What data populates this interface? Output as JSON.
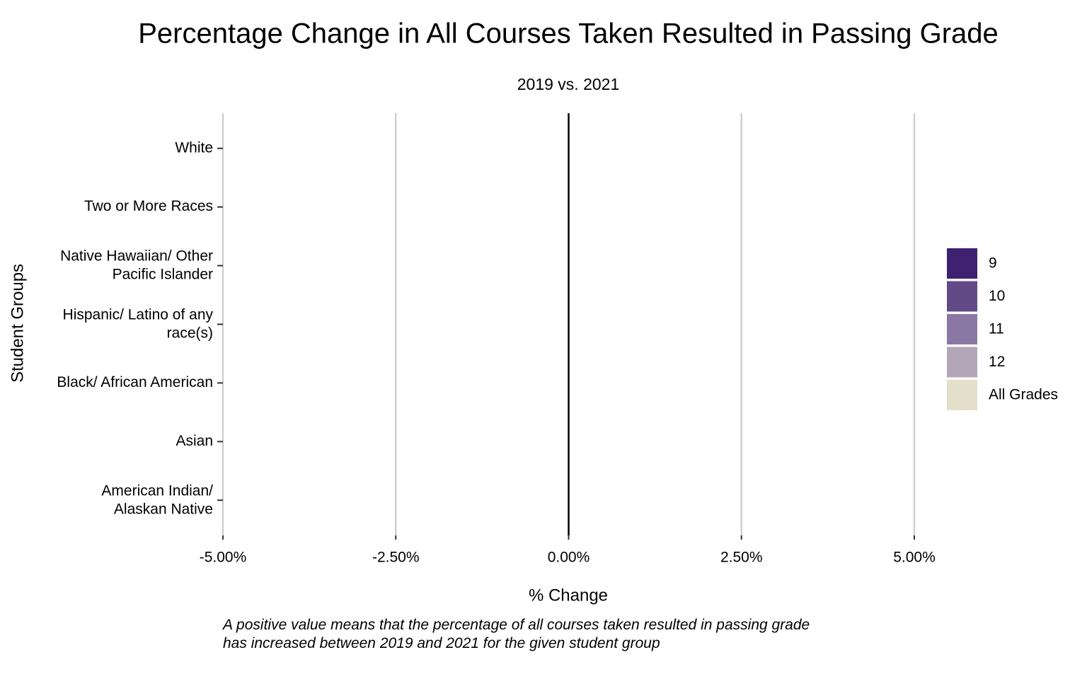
{
  "chart_data": {
    "type": "bar",
    "orientation": "horizontal",
    "title": "Percentage Change in All Courses Taken Resulted in Passing Grade",
    "subtitle": "2019 vs. 2021",
    "x_label": "% Change",
    "y_label": "Student Groups",
    "caption": "A positive value means that the percentage of all courses taken resulted in passing grade\nhas increased between 2019 and 2021 for the given student group",
    "categories": [
      "White",
      "Two or More Races",
      "Native Hawaiian/ Other\nPacific Islander",
      "Hispanic/ Latino of any\nrace(s)",
      "Black/ African American",
      "Asian",
      "American Indian/\nAlaskan Native"
    ],
    "series": [
      {
        "name": "9",
        "color": "#3f2171",
        "values": [
          null,
          null,
          null,
          null,
          null,
          null,
          null
        ]
      },
      {
        "name": "10",
        "color": "#624a87",
        "values": [
          null,
          null,
          null,
          null,
          null,
          null,
          null
        ]
      },
      {
        "name": "11",
        "color": "#8b77a3",
        "values": [
          null,
          null,
          null,
          null,
          null,
          null,
          null
        ]
      },
      {
        "name": "12",
        "color": "#b3a6b8",
        "values": [
          null,
          null,
          null,
          null,
          null,
          null,
          null
        ]
      },
      {
        "name": "All Grades",
        "color": "#e3dfca",
        "values": [
          null,
          null,
          null,
          null,
          null,
          null,
          null
        ]
      }
    ],
    "xlim": [
      -5,
      5
    ],
    "xticks": [
      {
        "value": -5,
        "label": "-5.00%"
      },
      {
        "value": -2.5,
        "label": "-2.50%"
      },
      {
        "value": 0,
        "label": "0.00%"
      },
      {
        "value": 2.5,
        "label": "2.50%"
      },
      {
        "value": 5,
        "label": "5.00%"
      }
    ],
    "grid": true,
    "legend": "right"
  }
}
